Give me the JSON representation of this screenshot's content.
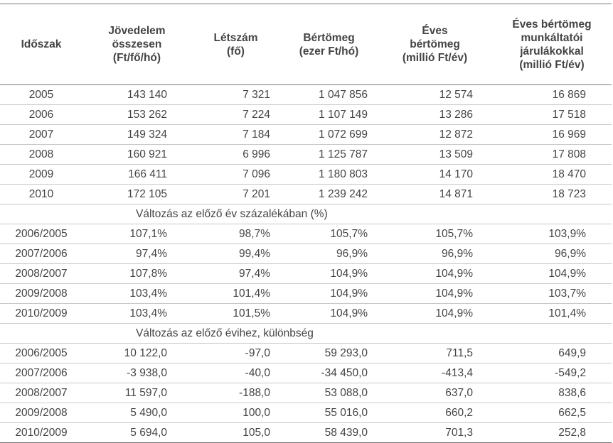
{
  "headers": [
    "Időszak",
    "Jövedelem\nösszesen\n(Ft/fő/hó)",
    "Létszám\n(fő)",
    "Bértömeg\n(ezer Ft/hó)",
    "Éves\nbértömeg\n(millió Ft/év)",
    "Éves bértömeg\nmunkáltatói\njárulákokkal\n(millió Ft/év)"
  ],
  "yearly": [
    [
      "2005",
      "143 140",
      "7 321",
      "1 047 856",
      "12 574",
      "16 869"
    ],
    [
      "2006",
      "153 262",
      "7 224",
      "1 107 149",
      "13 286",
      "17 518"
    ],
    [
      "2007",
      "149 324",
      "7 184",
      "1 072 699",
      "12 872",
      "16 969"
    ],
    [
      "2008",
      "160 921",
      "6 996",
      "1 125 787",
      "13 509",
      "17 808"
    ],
    [
      "2009",
      "166 411",
      "7 096",
      "1 180 803",
      "14 170",
      "18 470"
    ],
    [
      "2010",
      "172 105",
      "7 201",
      "1 239 242",
      "14 871",
      "18 723"
    ]
  ],
  "section_percent": "Változás az előző év százalékában (%)",
  "percent": [
    [
      "2006/2005",
      "107,1%",
      "98,7%",
      "105,7%",
      "105,7%",
      "103,9%"
    ],
    [
      "2007/2006",
      "97,4%",
      "99,4%",
      "96,9%",
      "96,9%",
      "96,9%"
    ],
    [
      "2008/2007",
      "107,8%",
      "97,4%",
      "104,9%",
      "104,9%",
      "104,9%"
    ],
    [
      "2009/2008",
      "103,4%",
      "101,4%",
      "104,9%",
      "104,9%",
      "103,7%"
    ],
    [
      "2010/2009",
      "103,4%",
      "101,5%",
      "104,9%",
      "104,9%",
      "101,4%"
    ]
  ],
  "section_difference": "Változás az előző évihez, különbség",
  "difference": [
    [
      "2006/2005",
      "10 122,0",
      "-97,0",
      "59 293,0",
      "711,5",
      "649,9"
    ],
    [
      "2007/2006",
      "-3 938,0",
      "-40,0",
      "-34 450,0",
      "-413,4",
      "-549,2"
    ],
    [
      "2008/2007",
      "11 597,0",
      "-188,0",
      "53 088,0",
      "637,0",
      "838,6"
    ],
    [
      "2009/2008",
      "5 490,0",
      "100,0",
      "55 016,0",
      "660,2",
      "662,5"
    ],
    [
      "2010/2009",
      "5 694,0",
      "105,0",
      "58 439,0",
      "701,3",
      "252,8"
    ]
  ]
}
